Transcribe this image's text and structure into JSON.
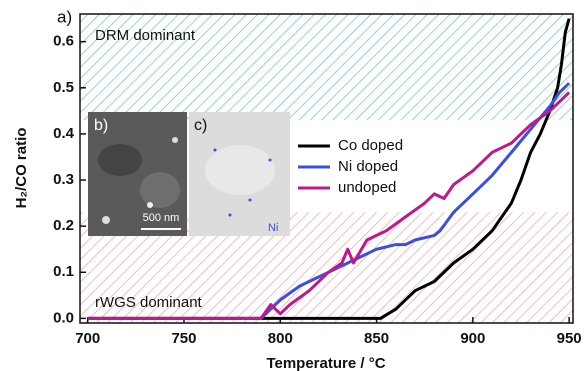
{
  "chart_data": {
    "type": "line",
    "panel_label": "a)",
    "xlabel": "Temperature / °C",
    "ylabel": "H₂/CO ratio",
    "xlim": [
      696,
      952
    ],
    "ylim": [
      -0.01,
      0.66
    ],
    "xticks": [
      700,
      750,
      800,
      850,
      900,
      950
    ],
    "yticks": [
      {
        "value": 0,
        "label": "0.0"
      },
      0.1,
      0.2,
      0.3,
      0.4,
      0.5,
      0.6
    ],
    "regions": [
      {
        "label": "DRM dominant",
        "ymin": 0.43,
        "color": "#2eb88a"
      },
      {
        "label": "rWGS dominant",
        "ymax": 0.23,
        "color": "#f08080"
      }
    ],
    "insets": [
      {
        "label": "b)",
        "scale_bar": "500 nm"
      },
      {
        "label": "c)",
        "element": "Ni"
      }
    ],
    "legend": "center-right",
    "series": [
      {
        "name": "Co doped",
        "color": "#000000",
        "x": [
          700,
          852,
          860,
          870,
          880,
          890,
          900,
          910,
          920,
          925,
          930,
          935,
          940,
          944,
          946,
          948,
          950
        ],
        "values": [
          0,
          0,
          0.02,
          0.06,
          0.08,
          0.12,
          0.15,
          0.19,
          0.25,
          0.3,
          0.36,
          0.4,
          0.45,
          0.5,
          0.55,
          0.62,
          0.65
        ]
      },
      {
        "name": "Ni doped",
        "color": "#3a4fe0",
        "x": [
          700,
          790,
          795,
          800,
          810,
          820,
          830,
          840,
          850,
          860,
          865,
          870,
          880,
          883,
          890,
          900,
          910,
          920,
          930,
          940,
          945,
          950
        ],
        "values": [
          0,
          0,
          0.02,
          0.04,
          0.07,
          0.09,
          0.11,
          0.13,
          0.15,
          0.16,
          0.16,
          0.17,
          0.18,
          0.19,
          0.23,
          0.27,
          0.31,
          0.36,
          0.41,
          0.46,
          0.49,
          0.51
        ]
      },
      {
        "name": "undoped",
        "color": "#c0188a",
        "x": [
          700,
          790,
          795,
          800,
          805,
          815,
          825,
          832,
          835,
          838,
          845,
          855,
          865,
          875,
          880,
          885,
          890,
          900,
          910,
          920,
          930,
          940,
          950
        ],
        "values": [
          0,
          0,
          0.03,
          0.01,
          0.03,
          0.06,
          0.1,
          0.12,
          0.15,
          0.12,
          0.17,
          0.19,
          0.22,
          0.25,
          0.27,
          0.26,
          0.29,
          0.32,
          0.36,
          0.38,
          0.42,
          0.45,
          0.49
        ]
      }
    ]
  }
}
